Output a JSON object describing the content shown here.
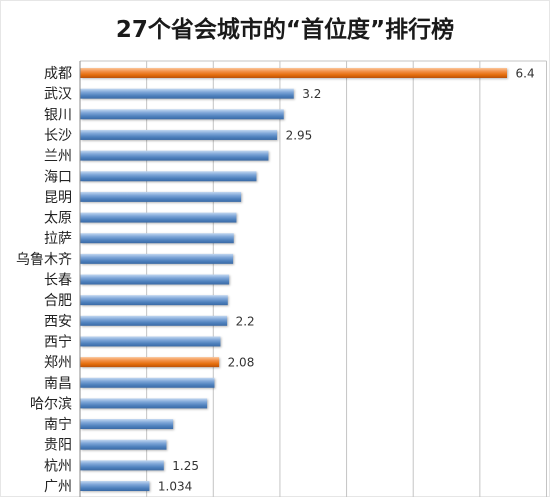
{
  "chart_data": {
    "type": "bar",
    "orientation": "horizontal",
    "title": "27个省会城市的“首位度”排行榜",
    "categories": [
      "成都",
      "武汉",
      "银川",
      "长沙",
      "兰州",
      "海口",
      "昆明",
      "太原",
      "拉萨",
      "乌鲁木齐",
      "长春",
      "合肥",
      "西安",
      "西宁",
      "郑州",
      "南昌",
      "哈尔滨",
      "南宁",
      "贵阳",
      "杭州",
      "广州"
    ],
    "values": [
      6.4,
      3.2,
      3.05,
      2.95,
      2.82,
      2.64,
      2.41,
      2.34,
      2.3,
      2.29,
      2.23,
      2.21,
      2.2,
      2.1,
      2.08,
      2.01,
      1.9,
      1.39,
      1.29,
      1.25,
      1.034
    ],
    "data_labels": [
      "6.4",
      "3.2",
      "",
      "2.95",
      "",
      "",
      "",
      "",
      "",
      "",
      "",
      "",
      "2.2",
      "",
      "2.08",
      "",
      "",
      "",
      "",
      "1.25",
      "1.034"
    ],
    "highlighted_categories": [
      "成都",
      "郑州"
    ],
    "xlabel": "",
    "ylabel": "",
    "xlim": [
      0,
      7
    ],
    "grid": true,
    "legend": "none",
    "colors": {
      "bar": "#4f81bd",
      "highlight": "#e46c0a",
      "grid": "#c4c4c4",
      "axis": "#8c8c8c"
    }
  }
}
